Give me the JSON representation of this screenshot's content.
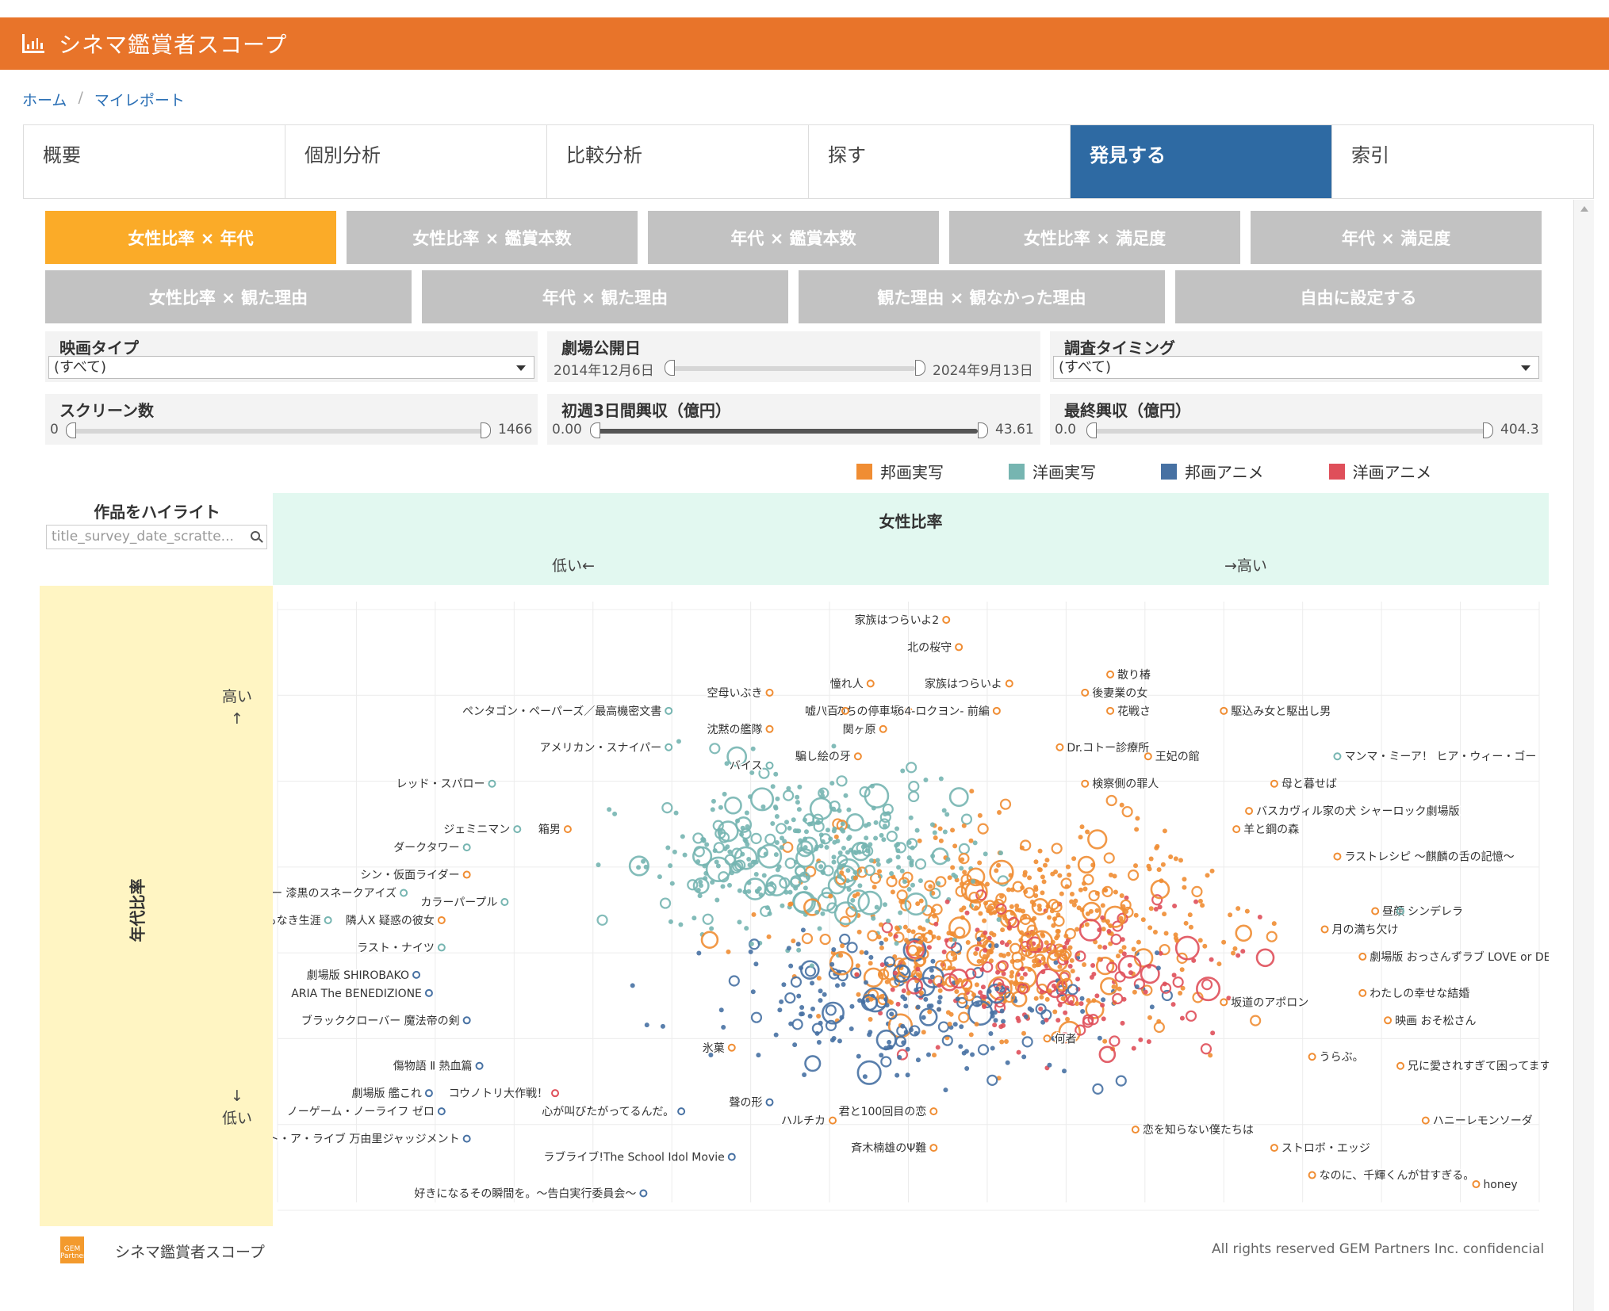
{
  "app": {
    "title": "シネマ鑑賞者スコープ",
    "logo_icon": "bar-chart-icon"
  },
  "breadcrumb": [
    "ホーム",
    "マイレポート"
  ],
  "tabs": [
    {
      "label": "概要",
      "active": false
    },
    {
      "label": "個別分析",
      "active": false
    },
    {
      "label": "比較分析",
      "active": false
    },
    {
      "label": "探す",
      "active": false
    },
    {
      "label": "発見する",
      "active": true
    },
    {
      "label": "索引",
      "active": false
    }
  ],
  "views_row1": [
    "女性比率 × 年代",
    "女性比率 × 鑑賞本数",
    "年代 × 鑑賞本数",
    "女性比率 × 満足度",
    "年代 × 満足度"
  ],
  "views_row2": [
    "女性比率 × 観た理由",
    "年代 × 観た理由",
    "観た理由 × 観なかった理由",
    "自由に設定する"
  ],
  "active_view": "女性比率 × 年代",
  "filters": {
    "movie_type": {
      "label": "映画タイプ",
      "value": "(すべて)"
    },
    "release_date": {
      "label": "劇場公開日",
      "min": "2014年12月6日",
      "max": "2024年9月13日"
    },
    "survey_timing": {
      "label": "調査タイミング",
      "value": "(すべて)"
    },
    "screens": {
      "label": "スクリーン数",
      "min": "0",
      "max": "1466"
    },
    "first3days": {
      "label": "初週3日間興収（億円）",
      "min": "0.00",
      "max": "43.61"
    },
    "final_box": {
      "label": "最終興収（億円）",
      "min": "0.0",
      "max": "404.3"
    }
  },
  "legend": [
    {
      "name": "邦画実写",
      "color": "#f08d33"
    },
    {
      "name": "洋画実写",
      "color": "#76b5b1"
    },
    {
      "name": "邦画アニメ",
      "color": "#4771a3"
    },
    {
      "name": "洋画アニメ",
      "color": "#df4f5a"
    }
  ],
  "highlight": {
    "title": "作品をハイライト",
    "placeholder": "title_survey_date_scratte..."
  },
  "axes": {
    "x_title": "女性比率",
    "x_low": "低い←",
    "x_high": "→高い",
    "y_title": "年代比率",
    "y_high": "高い",
    "y_low": "低い"
  },
  "chart_data": {
    "type": "scatter",
    "xlabel": "女性比率",
    "ylabel": "年代比率",
    "labeled_points": [
      {
        "label": "家族はつらいよ2",
        "x": 0.53,
        "y": 0.94,
        "series": "邦画実写"
      },
      {
        "label": "北の桜守",
        "x": 0.54,
        "y": 0.91,
        "series": "邦画実写"
      },
      {
        "label": "散り椿",
        "x": 0.66,
        "y": 0.88,
        "series": "邦画実写"
      },
      {
        "label": "家族はつらいよ",
        "x": 0.58,
        "y": 0.87,
        "series": "邦画実写"
      },
      {
        "label": "憧れ人",
        "x": 0.47,
        "y": 0.87,
        "series": "邦画実写"
      },
      {
        "label": "空母いぶき",
        "x": 0.39,
        "y": 0.86,
        "series": "邦画実写"
      },
      {
        "label": "後妻業の女",
        "x": 0.64,
        "y": 0.86,
        "series": "邦画実写"
      },
      {
        "label": "花戦さ",
        "x": 0.66,
        "y": 0.84,
        "series": "邦画実写"
      },
      {
        "label": "いのちの停車場",
        "x": 0.5,
        "y": 0.84,
        "series": "邦画実写"
      },
      {
        "label": "ペンタゴン・ペーパーズ／最高機密文書",
        "x": 0.31,
        "y": 0.84,
        "series": "洋画実写"
      },
      {
        "label": "嘘八百",
        "x": 0.45,
        "y": 0.84,
        "series": "邦画実写"
      },
      {
        "label": "64-ロクヨン- 前編",
        "x": 0.57,
        "y": 0.84,
        "series": "邦画実写"
      },
      {
        "label": "駆込み女と駆出し男",
        "x": 0.75,
        "y": 0.84,
        "series": "邦画実写"
      },
      {
        "label": "関ヶ原",
        "x": 0.48,
        "y": 0.82,
        "series": "邦画実写"
      },
      {
        "label": "沈黙の艦隊",
        "x": 0.39,
        "y": 0.82,
        "series": "邦画実写"
      },
      {
        "label": "アメリカン・スナイパー",
        "x": 0.31,
        "y": 0.8,
        "series": "洋画実写"
      },
      {
        "label": "Dr.コトー診療所",
        "x": 0.62,
        "y": 0.8,
        "series": "邦画実写"
      },
      {
        "label": "王妃の館",
        "x": 0.69,
        "y": 0.79,
        "series": "邦画実写"
      },
      {
        "label": "騙し絵の牙",
        "x": 0.46,
        "y": 0.79,
        "series": "邦画実写"
      },
      {
        "label": "バイス",
        "x": 0.39,
        "y": 0.78,
        "series": "洋画実写"
      },
      {
        "label": "マンマ・ミーア！ ヒア・ウィー・ゴー",
        "x": 0.84,
        "y": 0.79,
        "series": "洋画実写"
      },
      {
        "label": "レッド・スパロー",
        "x": 0.17,
        "y": 0.76,
        "series": "洋画実写"
      },
      {
        "label": "検察側の罪人",
        "x": 0.64,
        "y": 0.76,
        "series": "邦画実写"
      },
      {
        "label": "母と暮せば",
        "x": 0.79,
        "y": 0.76,
        "series": "邦画実写"
      },
      {
        "label": "バスカヴィル家の犬 シャーロック劇場版",
        "x": 0.77,
        "y": 0.73,
        "series": "邦画実写"
      },
      {
        "label": "羊と鋼の森",
        "x": 0.76,
        "y": 0.71,
        "series": "邦画実写"
      },
      {
        "label": "ジェミニマン",
        "x": 0.19,
        "y": 0.71,
        "series": "洋画実写"
      },
      {
        "label": "箱男",
        "x": 0.23,
        "y": 0.71,
        "series": "邦画実写"
      },
      {
        "label": "ダークタワー",
        "x": 0.15,
        "y": 0.69,
        "series": "洋画実写"
      },
      {
        "label": "ラストレシピ ～麒麟の舌の記憶～",
        "x": 0.84,
        "y": 0.68,
        "series": "邦画実写"
      },
      {
        "label": "シン・仮面ライダー",
        "x": 0.15,
        "y": 0.66,
        "series": "邦画実写"
      },
      {
        "label": "G.I.ジョー 漆黒のスネークアイズ",
        "x": 0.1,
        "y": 0.64,
        "series": "洋画実写"
      },
      {
        "label": "カラーパープル",
        "x": 0.18,
        "y": 0.63,
        "series": "洋画実写"
      },
      {
        "label": "昼顔",
        "x": 0.87,
        "y": 0.62,
        "series": "邦画実写"
      },
      {
        "label": "シンデレラ",
        "x": 0.89,
        "y": 0.62,
        "series": "洋画実写"
      },
      {
        "label": "名もなき生涯",
        "x": 0.04,
        "y": 0.61,
        "series": "洋画実写"
      },
      {
        "label": "隣人X 疑惑の彼女",
        "x": 0.13,
        "y": 0.61,
        "series": "邦画実写"
      },
      {
        "label": "月の満ち欠け",
        "x": 0.83,
        "y": 0.6,
        "series": "邦画実写"
      },
      {
        "label": "ラスト・ナイツ",
        "x": 0.13,
        "y": 0.58,
        "series": "洋画実写"
      },
      {
        "label": "劇場版 おっさんずラブ LOVE or DEAD",
        "x": 0.86,
        "y": 0.57,
        "series": "邦画実写"
      },
      {
        "label": "劇場版 SHIROBAKO",
        "x": 0.11,
        "y": 0.55,
        "series": "邦画アニメ"
      },
      {
        "label": "わたしの幸せな結婚",
        "x": 0.86,
        "y": 0.53,
        "series": "邦画実写"
      },
      {
        "label": "ARIA The BENEDIZIONE",
        "x": 0.12,
        "y": 0.53,
        "series": "邦画アニメ"
      },
      {
        "label": "坂道のアポロン",
        "x": 0.75,
        "y": 0.52,
        "series": "邦画実写"
      },
      {
        "label": "ブラッククローバー 魔法帝の剣",
        "x": 0.15,
        "y": 0.5,
        "series": "邦画アニメ"
      },
      {
        "label": "映画 おそ松さん",
        "x": 0.88,
        "y": 0.5,
        "series": "邦画実写"
      },
      {
        "label": "氷菓",
        "x": 0.36,
        "y": 0.47,
        "series": "邦画実写"
      },
      {
        "label": "何者",
        "x": 0.61,
        "y": 0.48,
        "series": "邦画実写"
      },
      {
        "label": "うらぶ。",
        "x": 0.82,
        "y": 0.46,
        "series": "邦画実写"
      },
      {
        "label": "傷物語 Ⅱ 熱血篇",
        "x": 0.16,
        "y": 0.45,
        "series": "邦画アニメ"
      },
      {
        "label": "兄に愛されすぎて困ってます",
        "x": 0.89,
        "y": 0.45,
        "series": "邦画実写"
      },
      {
        "label": "劇場版 艦これ",
        "x": 0.12,
        "y": 0.42,
        "series": "邦画アニメ"
      },
      {
        "label": "コウノトリ大作戦！",
        "x": 0.22,
        "y": 0.42,
        "series": "洋画アニメ"
      },
      {
        "label": "ノーゲーム・ノーライフ ゼロ",
        "x": 0.13,
        "y": 0.4,
        "series": "邦画アニメ"
      },
      {
        "label": "心が叫びたがってるんだ。",
        "x": 0.32,
        "y": 0.4,
        "series": "邦画アニメ"
      },
      {
        "label": "聲の形",
        "x": 0.39,
        "y": 0.41,
        "series": "邦画アニメ"
      },
      {
        "label": "ハルチカ",
        "x": 0.44,
        "y": 0.39,
        "series": "邦画実写"
      },
      {
        "label": "君と100回目の恋",
        "x": 0.52,
        "y": 0.4,
        "series": "邦画実写"
      },
      {
        "label": "ハニーレモンソーダ",
        "x": 0.91,
        "y": 0.39,
        "series": "邦画実写"
      },
      {
        "label": "恋を知らない僕たちは",
        "x": 0.68,
        "y": 0.38,
        "series": "邦画実写"
      },
      {
        "label": "劇場版デート・ア・ライブ 万由里ジャッジメント",
        "x": 0.15,
        "y": 0.37,
        "series": "邦画アニメ"
      },
      {
        "label": "斉木楠雄のΨ難",
        "x": 0.52,
        "y": 0.36,
        "series": "邦画実写"
      },
      {
        "label": "ストロボ・エッジ",
        "x": 0.79,
        "y": 0.36,
        "series": "邦画実写"
      },
      {
        "label": "ラブライブ!The School Idol Movie",
        "x": 0.36,
        "y": 0.35,
        "series": "邦画アニメ"
      },
      {
        "label": "なのに、千輝くんが甘すぎる。",
        "x": 0.82,
        "y": 0.33,
        "series": "邦画実写"
      },
      {
        "label": "honey",
        "x": 0.95,
        "y": 0.32,
        "series": "邦画実写"
      },
      {
        "label": "好きになるその瞬間を。～告白実行委員会～",
        "x": 0.29,
        "y": 0.31,
        "series": "邦画アニメ"
      }
    ]
  },
  "footer": {
    "logo_text": "GEM Partners",
    "name": "シネマ鑑賞者スコープ",
    "copyright": "All rights reserved GEM Partners Inc. confidencial"
  }
}
